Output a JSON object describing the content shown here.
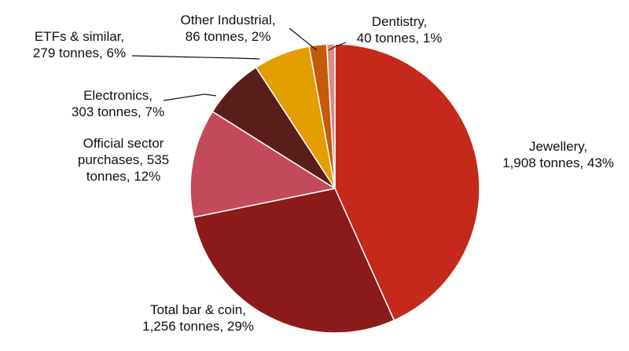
{
  "chart_data": {
    "type": "pie",
    "unit": "tonnes",
    "slices": [
      {
        "name": "Jewellery",
        "value": 1908,
        "percent": 43,
        "color": "#c4291c",
        "label_lines": [
          "Jewellery,",
          "1,908 tonnes, 43%"
        ]
      },
      {
        "name": "Total bar & coin",
        "value": 1256,
        "percent": 29,
        "color": "#8b1a1a",
        "label_lines": [
          "Total bar & coin,",
          "1,256 tonnes, 29%"
        ]
      },
      {
        "name": "Official sector purchases",
        "value": 535,
        "percent": 12,
        "color": "#c24a5a",
        "label_lines": [
          "Official sector",
          "purchases,  535",
          "tonnes, 12%"
        ]
      },
      {
        "name": "Electronics",
        "value": 303,
        "percent": 7,
        "color": "#5a1e1a",
        "label_lines": [
          "Electronics,",
          "303 tonnes, 7%"
        ]
      },
      {
        "name": "ETFs & similar",
        "value": 279,
        "percent": 6,
        "color": "#e39e00",
        "label_lines": [
          "ETFs & similar,",
          "279 tonnes, 6%"
        ]
      },
      {
        "name": "Other Industrial",
        "value": 86,
        "percent": 2,
        "color": "#c65a0c",
        "label_lines": [
          "Other Industrial,",
          "86 tonnes, 2%"
        ]
      },
      {
        "name": "Dentistry",
        "value": 40,
        "percent": 1,
        "color": "#e08a86",
        "label_lines": [
          "Dentistry,",
          "40 tonnes, 1%"
        ]
      }
    ]
  }
}
